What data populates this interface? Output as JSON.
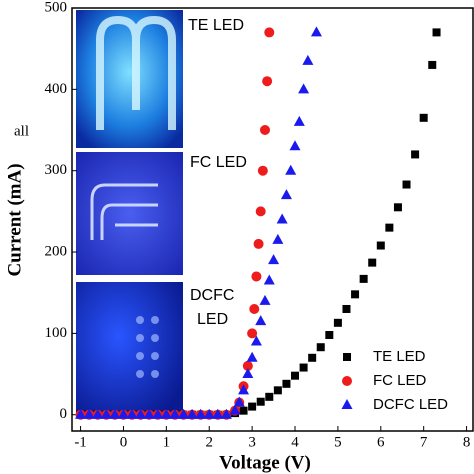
{
  "chart_data": {
    "type": "scatter",
    "xlabel": "Voltage (V)",
    "ylabel": "Current (mA)",
    "xlim": [
      -1.2,
      8.15
    ],
    "ylim": [
      -20,
      500
    ],
    "xticks": [
      -1,
      0,
      1,
      2,
      3,
      4,
      5,
      6,
      7,
      8
    ],
    "yticks": [
      0,
      100,
      200,
      300,
      400,
      500
    ],
    "legend": "lower right",
    "series": [
      {
        "name": "TE LED",
        "color": "#000000",
        "marker": "square",
        "x": [
          -1.0,
          -0.8,
          -0.6,
          -0.4,
          -0.2,
          0.0,
          0.2,
          0.4,
          0.6,
          0.8,
          1.0,
          1.2,
          1.4,
          1.6,
          1.8,
          2.0,
          2.2,
          2.4,
          2.6,
          2.8,
          3.0,
          3.2,
          3.4,
          3.6,
          3.8,
          4.0,
          4.2,
          4.4,
          4.6,
          4.8,
          5.0,
          5.2,
          5.4,
          5.6,
          5.8,
          6.0,
          6.2,
          6.4,
          6.6,
          6.8,
          7.0,
          7.2,
          7.3
        ],
        "values": [
          0,
          0,
          0,
          0,
          0,
          0,
          0,
          0,
          0,
          0,
          0,
          0,
          0,
          0,
          0,
          0,
          0,
          0,
          2,
          5,
          10,
          16,
          22,
          30,
          38,
          48,
          58,
          70,
          83,
          98,
          113,
          130,
          148,
          167,
          187,
          208,
          230,
          255,
          283,
          320,
          365,
          430,
          470
        ]
      },
      {
        "name": "FC LED",
        "color": "#ee1c1c",
        "marker": "circle",
        "x": [
          -1.0,
          -0.8,
          -0.6,
          -0.4,
          -0.2,
          0.0,
          0.2,
          0.4,
          0.6,
          0.8,
          1.0,
          1.2,
          1.4,
          1.6,
          1.8,
          2.0,
          2.2,
          2.4,
          2.6,
          2.7,
          2.8,
          2.9,
          3.0,
          3.05,
          3.1,
          3.15,
          3.2,
          3.25,
          3.3,
          3.35,
          3.4
        ],
        "values": [
          0,
          0,
          0,
          0,
          0,
          0,
          0,
          0,
          0,
          0,
          0,
          0,
          0,
          0,
          0,
          0,
          0,
          0,
          5,
          15,
          35,
          60,
          100,
          130,
          170,
          210,
          250,
          300,
          350,
          410,
          470
        ]
      },
      {
        "name": "DCFC LED",
        "color": "#1a1aee",
        "marker": "triangle",
        "x": [
          -1.0,
          -0.8,
          -0.6,
          -0.4,
          -0.2,
          0.0,
          0.2,
          0.4,
          0.6,
          0.8,
          1.0,
          1.2,
          1.4,
          1.6,
          1.8,
          2.0,
          2.2,
          2.4,
          2.6,
          2.7,
          2.8,
          2.9,
          3.0,
          3.1,
          3.2,
          3.3,
          3.4,
          3.5,
          3.6,
          3.7,
          3.8,
          3.9,
          4.0,
          4.1,
          4.2,
          4.3,
          4.5
        ],
        "values": [
          0,
          0,
          0,
          0,
          0,
          0,
          0,
          0,
          0,
          0,
          0,
          0,
          0,
          0,
          0,
          0,
          0,
          0,
          5,
          15,
          30,
          50,
          70,
          90,
          115,
          140,
          165,
          190,
          215,
          240,
          270,
          300,
          330,
          360,
          400,
          435,
          470
        ]
      }
    ],
    "annotations": [
      "all",
      "TE LED",
      "FC LED",
      "DCFC",
      "LED"
    ]
  }
}
